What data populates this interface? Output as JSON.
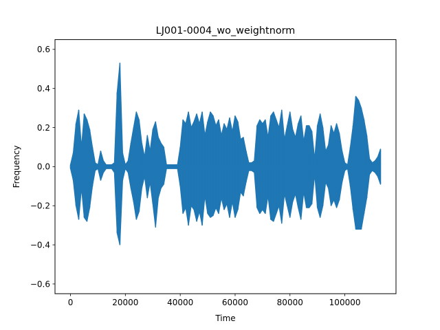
{
  "chart_data": {
    "type": "line",
    "title": "LJ001-0004_wo_weightnorm",
    "xlabel": "Time",
    "ylabel": "Frequency",
    "xlim": [
      -5650,
      118650
    ],
    "ylim": [
      -0.65,
      0.65
    ],
    "xticks": [
      0,
      20000,
      40000,
      60000,
      80000,
      100000
    ],
    "xtick_labels": [
      "0",
      "20000",
      "40000",
      "60000",
      "80000",
      "100000"
    ],
    "yticks": [
      -0.6,
      -0.4,
      -0.2,
      0.0,
      0.2,
      0.4,
      0.6
    ],
    "ytick_labels": [
      "−0.6",
      "−0.4",
      "−0.2",
      "0.0",
      "0.2",
      "0.4",
      "0.6"
    ],
    "grid": false,
    "legend": "none",
    "color": "#1f77b4",
    "sample_count": 113000,
    "series": [
      {
        "x": [
          0,
          1000,
          2000,
          3000,
          4000,
          5000,
          6000,
          7000,
          8000,
          9000,
          10000,
          11000,
          12000,
          13000,
          14000,
          15000,
          16000,
          17000,
          18000,
          19000,
          20000,
          21000,
          22000,
          23000,
          24000,
          25000,
          26000,
          27000,
          28000,
          29000,
          30000,
          31000,
          32000,
          33000,
          34000,
          35000,
          36000,
          37000,
          38000,
          39000,
          40000,
          41000,
          42000,
          43000,
          44000,
          45000,
          46000,
          47000,
          48000,
          49000,
          50000,
          51000,
          52000,
          53000,
          54000,
          55000,
          56000,
          57000,
          58000,
          59000,
          60000,
          61000,
          62000,
          63000,
          64000,
          65000,
          66000,
          67000,
          68000,
          69000,
          70000,
          71000,
          72000,
          73000,
          74000,
          75000,
          76000,
          77000,
          78000,
          79000,
          80000,
          81000,
          82000,
          83000,
          84000,
          85000,
          86000,
          87000,
          88000,
          89000,
          90000,
          91000,
          92000,
          93000,
          94000,
          95000,
          96000,
          97000,
          98000,
          99000,
          100000,
          101000,
          102000,
          103000,
          104000,
          105000,
          106000,
          107000,
          108000,
          109000,
          110000,
          111000,
          112000,
          113000
        ],
        "ymax": [
          0.01,
          0.07,
          0.22,
          0.29,
          0.1,
          0.27,
          0.24,
          0.19,
          0.1,
          0.02,
          0.01,
          0.08,
          0.03,
          0.01,
          0.01,
          0.01,
          0.02,
          0.38,
          0.53,
          0.07,
          0.01,
          0.03,
          0.12,
          0.2,
          0.28,
          0.24,
          0.12,
          0.05,
          0.16,
          0.08,
          0.19,
          0.23,
          0.15,
          0.12,
          0.1,
          0.01,
          0.01,
          0.01,
          0.01,
          0.01,
          0.1,
          0.24,
          0.22,
          0.28,
          0.2,
          0.23,
          0.27,
          0.22,
          0.28,
          0.16,
          0.23,
          0.28,
          0.26,
          0.21,
          0.24,
          0.16,
          0.22,
          0.19,
          0.25,
          0.18,
          0.26,
          0.23,
          0.14,
          0.15,
          0.08,
          0.02,
          0.02,
          0.03,
          0.21,
          0.24,
          0.22,
          0.24,
          0.15,
          0.26,
          0.28,
          0.24,
          0.2,
          0.29,
          0.14,
          0.21,
          0.28,
          0.19,
          0.15,
          0.22,
          0.26,
          0.13,
          0.21,
          0.21,
          0.18,
          0.04,
          0.21,
          0.27,
          0.2,
          0.08,
          0.11,
          0.21,
          0.17,
          0.22,
          0.17,
          0.08,
          0.02,
          0.01,
          0.1,
          0.21,
          0.36,
          0.34,
          0.3,
          0.24,
          0.16,
          0.04,
          0.02,
          0.03,
          0.05,
          0.09
        ],
        "ymin": [
          -0.01,
          -0.07,
          -0.2,
          -0.27,
          -0.11,
          -0.26,
          -0.28,
          -0.21,
          -0.1,
          -0.02,
          -0.01,
          -0.07,
          -0.03,
          -0.01,
          -0.01,
          -0.01,
          -0.03,
          -0.34,
          -0.4,
          -0.07,
          -0.01,
          -0.03,
          -0.11,
          -0.18,
          -0.27,
          -0.23,
          -0.11,
          -0.05,
          -0.16,
          -0.08,
          -0.19,
          -0.31,
          -0.16,
          -0.11,
          -0.09,
          -0.01,
          -0.01,
          -0.01,
          -0.01,
          -0.01,
          -0.1,
          -0.24,
          -0.21,
          -0.3,
          -0.2,
          -0.22,
          -0.28,
          -0.23,
          -0.3,
          -0.15,
          -0.24,
          -0.26,
          -0.25,
          -0.21,
          -0.24,
          -0.16,
          -0.22,
          -0.19,
          -0.26,
          -0.18,
          -0.26,
          -0.22,
          -0.13,
          -0.15,
          -0.08,
          -0.02,
          -0.02,
          -0.03,
          -0.21,
          -0.24,
          -0.22,
          -0.24,
          -0.15,
          -0.27,
          -0.28,
          -0.24,
          -0.2,
          -0.29,
          -0.14,
          -0.2,
          -0.26,
          -0.18,
          -0.14,
          -0.21,
          -0.27,
          -0.13,
          -0.21,
          -0.21,
          -0.19,
          -0.04,
          -0.21,
          -0.26,
          -0.2,
          -0.08,
          -0.11,
          -0.2,
          -0.17,
          -0.21,
          -0.17,
          -0.08,
          -0.02,
          -0.01,
          -0.1,
          -0.22,
          -0.32,
          -0.32,
          -0.32,
          -0.24,
          -0.16,
          -0.04,
          -0.02,
          -0.03,
          -0.05,
          -0.09
        ]
      }
    ]
  }
}
